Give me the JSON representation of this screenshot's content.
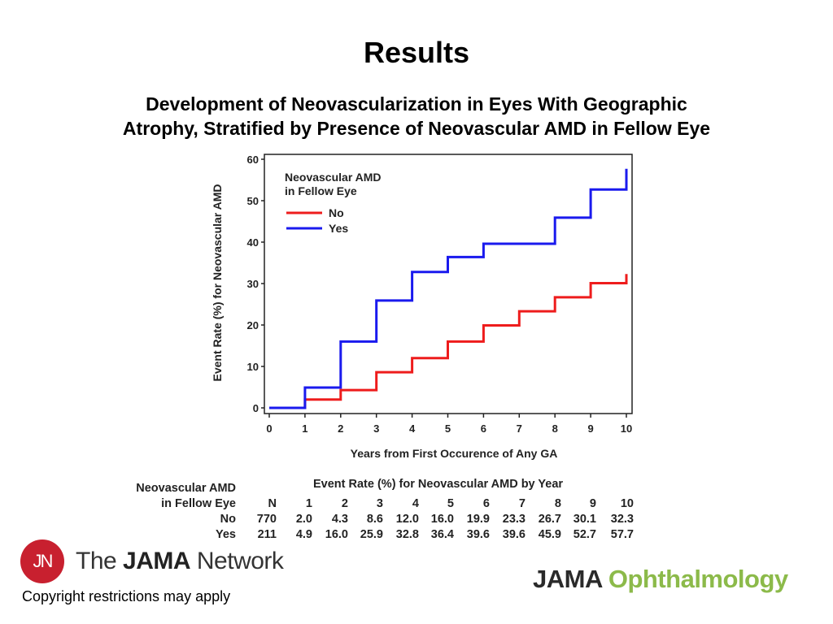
{
  "header": {
    "title": "Results",
    "subtitle_line1": "Development of Neovascularization in Eyes With Geographic",
    "subtitle_line2": "Atrophy, Stratified by Presence of Neovascular AMD in Fellow Eye"
  },
  "chart_data": {
    "type": "line",
    "step": true,
    "xlabel": "Years from First Occurence of Any GA",
    "ylabel": "Event Rate (%) for Neovascular AMD",
    "xlim": [
      0,
      10
    ],
    "ylim": [
      0,
      60
    ],
    "xticks": [
      "0",
      "1",
      "2",
      "3",
      "4",
      "5",
      "6",
      "7",
      "8",
      "9",
      "10"
    ],
    "yticks": [
      "0",
      "10",
      "20",
      "30",
      "40",
      "50",
      "60"
    ],
    "grid": false,
    "legend": {
      "title_line1": "Neovascular AMD",
      "title_line2": "in Fellow Eye",
      "placement": "top-left"
    },
    "x": [
      0,
      1,
      2,
      3,
      4,
      5,
      6,
      7,
      8,
      9,
      10
    ],
    "series": [
      {
        "name": "No",
        "color": "#ee1c1c",
        "values": [
          0,
          2.0,
          4.3,
          8.6,
          12.0,
          16.0,
          19.9,
          23.3,
          26.7,
          30.1,
          32.3
        ]
      },
      {
        "name": "Yes",
        "color": "#1a1aee",
        "values": [
          0,
          4.9,
          16.0,
          25.9,
          32.8,
          36.4,
          39.6,
          39.6,
          45.9,
          52.7,
          57.7
        ]
      }
    ]
  },
  "table": {
    "title": "Event Rate (%) for Neovascular AMD by Year",
    "row_label_line1": "Neovascular AMD",
    "row_label_line2": "in Fellow Eye",
    "columns": [
      "N",
      "1",
      "2",
      "3",
      "4",
      "5",
      "6",
      "7",
      "8",
      "9",
      "10"
    ],
    "rows": [
      {
        "label": "No",
        "cells": [
          "770",
          "2.0",
          "4.3",
          "8.6",
          "12.0",
          "16.0",
          "19.9",
          "23.3",
          "26.7",
          "30.1",
          "32.3"
        ]
      },
      {
        "label": "Yes",
        "cells": [
          "211",
          "4.9",
          "16.0",
          "25.9",
          "32.8",
          "36.4",
          "39.6",
          "39.6",
          "45.9",
          "52.7",
          "57.7"
        ]
      }
    ]
  },
  "footer": {
    "logo_initials": "JN",
    "network_pre": "The ",
    "network_bold": "JAMA",
    "network_post": " Network",
    "copyright": "Copyright restrictions may apply",
    "journal_jama": "JAMA",
    "journal_name": "Ophthalmology"
  },
  "colors": {
    "logo_red": "#c8202f",
    "journal_green": "#8cba4a"
  }
}
